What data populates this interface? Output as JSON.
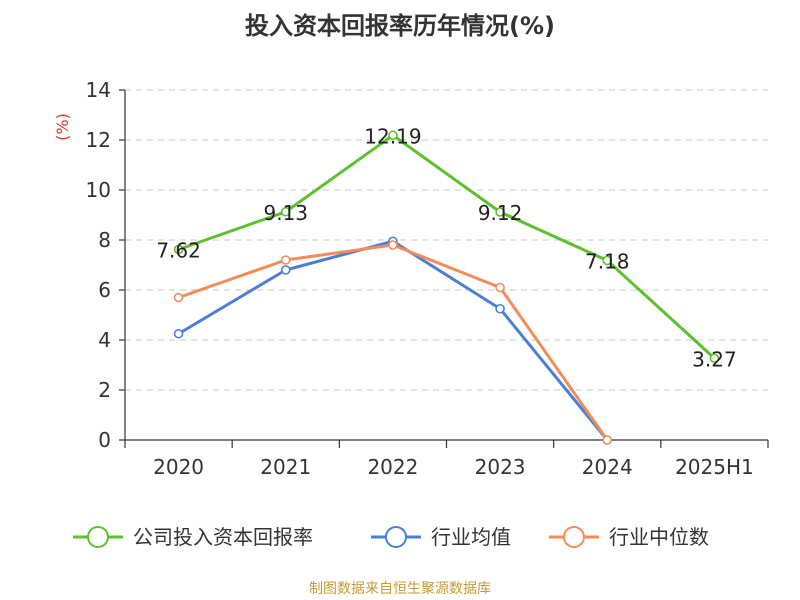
{
  "chart_data": {
    "type": "line",
    "title": "投入资本回报率历年情况(%)",
    "ylabel": "(%)",
    "categories": [
      "2020",
      "2021",
      "2022",
      "2023",
      "2024",
      "2025H1"
    ],
    "ylim": [
      0,
      14
    ],
    "yticks": [
      0,
      2,
      4,
      6,
      8,
      10,
      12,
      14
    ],
    "grid": true,
    "legend_position": "bottom",
    "series": [
      {
        "name": "公司投入资本回报率",
        "color": "#5cc12c",
        "values": [
          7.62,
          9.13,
          12.19,
          9.12,
          7.18,
          3.27
        ],
        "labels": [
          "7.62",
          "9.13",
          "12.19",
          "9.12",
          "7.18",
          "3.27"
        ],
        "show_labels": true
      },
      {
        "name": "行业均值",
        "color": "#4b7fd6",
        "values": [
          4.25,
          6.8,
          7.95,
          5.25,
          0.0,
          null
        ],
        "show_labels": false
      },
      {
        "name": "行业中位数",
        "color": "#f28c5a",
        "values": [
          5.7,
          7.2,
          7.8,
          6.1,
          0.0,
          null
        ],
        "show_labels": false
      }
    ]
  },
  "footer": {
    "source": "制图数据来自恒生聚源数据库"
  }
}
